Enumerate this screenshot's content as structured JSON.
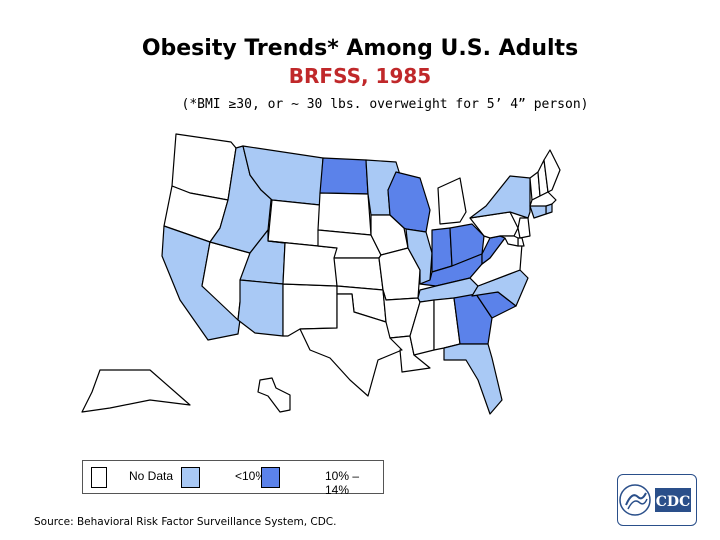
{
  "header": {
    "title": "Obesity Trends* Among U.S. Adults",
    "subtitle": "BRFSS, 1985",
    "footnote": "(*BMI ≥30, or ~ 30 lbs. overweight for 5’ 4” person)"
  },
  "colors": {
    "title": "#000000",
    "subtitle": "#c0282a",
    "no_data": "#ffffff",
    "lt10": "#a9c9f5",
    "p10_14": "#5b82ea",
    "border": "#000000"
  },
  "legend": [
    {
      "label": "No Data",
      "category": "no_data"
    },
    {
      "label": "<10%",
      "category": "lt10"
    },
    {
      "label": "10% –14%",
      "category": "p10_14"
    }
  ],
  "map_data": {
    "category_by_state": {
      "WA": "no_data",
      "OR": "no_data",
      "CA": "lt10",
      "NV": "no_data",
      "ID": "lt10",
      "MT": "lt10",
      "WY": "no_data",
      "UT": "lt10",
      "AZ": "lt10",
      "NM": "no_data",
      "CO": "no_data",
      "ND": "p10_14",
      "SD": "no_data",
      "NE": "no_data",
      "KS": "no_data",
      "OK": "no_data",
      "TX": "no_data",
      "MN": "lt10",
      "IA": "no_data",
      "MO": "no_data",
      "AR": "no_data",
      "LA": "no_data",
      "WI": "p10_14",
      "IL": "lt10",
      "MI": "no_data",
      "IN": "p10_14",
      "OH": "p10_14",
      "KY": "p10_14",
      "TN": "lt10",
      "MS": "no_data",
      "AL": "no_data",
      "GA": "p10_14",
      "FL": "lt10",
      "SC": "p10_14",
      "NC": "lt10",
      "VA": "no_data",
      "WV": "p10_14",
      "PA": "no_data",
      "NY": "lt10",
      "VT": "no_data",
      "NH": "no_data",
      "ME": "no_data",
      "MA": "no_data",
      "RI": "lt10",
      "CT": "lt10",
      "NJ": "no_data",
      "DE": "no_data",
      "MD": "no_data",
      "AK": "no_data",
      "HI": "no_data"
    }
  },
  "source": "Source: Behavioral Risk Factor Surveillance System, CDC.",
  "logo": {
    "text": "CDC",
    "icon": "cdc-hhs-logo-icon"
  }
}
